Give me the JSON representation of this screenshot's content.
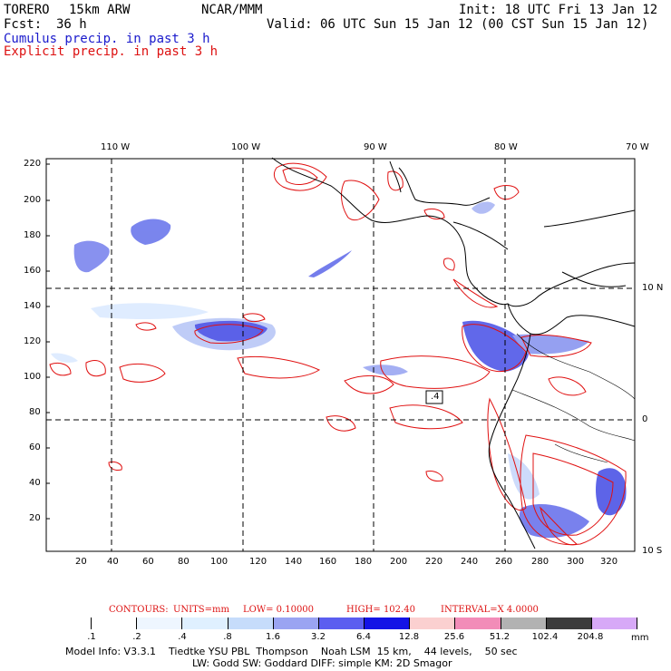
{
  "header": {
    "model": "TORERO",
    "resolution": "15km ARW",
    "center": "NCAR/MMM",
    "init": "Init: 18 UTC Fri 13 Jan 12",
    "fcst_label": "Fcst:",
    "fcst_value": "36 h",
    "valid": "Valid: 06 UTC Sun 15 Jan 12 (00 CST Sun 15 Jan 12)",
    "field1": "Cumulus precip. in past 3 h",
    "field2": "Explicit precip. in past 3 h"
  },
  "axes": {
    "top_labels": [
      "110 W",
      "100 W",
      "90 W",
      "80 W",
      "70 W"
    ],
    "right_labels": [
      "10 N",
      "0",
      "10 S"
    ],
    "y_ticks": [
      "220",
      "200",
      "180",
      "160",
      "140",
      "120",
      "100",
      "80",
      "60",
      "40",
      "20"
    ],
    "x_ticks": [
      "20",
      "40",
      "60",
      "80",
      "100",
      "120",
      "140",
      "160",
      "180",
      "200",
      "220",
      "240",
      "260",
      "280",
      "300",
      "320"
    ]
  },
  "annotation": {
    "box_label": ".4"
  },
  "contours_info": {
    "label": "CONTOURS:",
    "units": "UNITS=mm",
    "low": "LOW= 0.10000",
    "high": "HIGH= 102.40",
    "interval": "INTERVAL=X 4.0000"
  },
  "colorbar": {
    "units": "mm",
    "labels": [
      ".1",
      ".2",
      ".4",
      ".8",
      "1.6",
      "3.2",
      "6.4",
      "12.8",
      "25.6",
      "51.2",
      "102.4",
      "204.8"
    ],
    "colors": [
      "#ffffff",
      "#ffffff",
      "#eef6ff",
      "#dff0ff",
      "#c6dcfb",
      "#9aa4f2",
      "#5b5ef0",
      "#1414e6",
      "#fbd0d0",
      "#f28cb8",
      "#b2b2b2",
      "#3c3c3c",
      "#d7a9f7"
    ]
  },
  "model_info": {
    "line1": "Model Info: V3.3.1    Tiedtke YSU PBL  Thompson    Noah LSM  15 km,    44 levels,    50 sec",
    "line2": "LW: Godd SW: Goddard DIFF: simple KM: 2D Smagor"
  }
}
